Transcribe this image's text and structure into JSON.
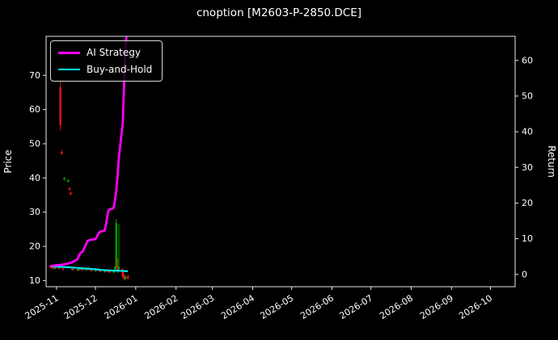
{
  "title": "cnoption [M2603-P-2850.DCE]",
  "colors": {
    "background": "#000000",
    "text": "#ffffff",
    "axis": "#e8e8e8",
    "candle_up": "#00a000",
    "candle_down": "#ee1111",
    "ai_strategy": "#ff00ff",
    "buy_and_hold": "#00e5ee"
  },
  "legend": {
    "items": [
      {
        "label": "AI Strategy",
        "color": "#ff00ff"
      },
      {
        "label": "Buy-and-Hold",
        "color": "#00e5ee"
      }
    ]
  },
  "chart_data": {
    "type": "line",
    "title": "cnoption [M2603-P-2850.DCE]",
    "ylabel_left": "Price",
    "ylabel_right": "Return",
    "grid": false,
    "legend_position": "upper-left",
    "x_range": [
      "2025-10-24",
      "2026-10-20"
    ],
    "x_tick_labels": [
      "2025-11",
      "2025-12",
      "2026-01",
      "2026-02",
      "2026-03",
      "2026-04",
      "2026-05",
      "2026-06",
      "2026-07",
      "2026-08",
      "2026-09",
      "2026-10"
    ],
    "price_ticks": [
      10,
      20,
      30,
      40,
      50,
      60,
      70
    ],
    "return_ticks": [
      0,
      10,
      20,
      30,
      40,
      50,
      60
    ],
    "price_axis": {
      "min": 8.2,
      "max": 81.4
    },
    "return_axis": {
      "min": -3.45,
      "max": 66.74
    },
    "series": [
      {
        "name": "AI Strategy",
        "axis": "left-price",
        "color": "#ff00ff",
        "points": [
          [
            "2025-10-27",
            14.2
          ],
          [
            "2025-10-31",
            14.4
          ],
          [
            "2025-11-05",
            14.6
          ],
          [
            "2025-11-10",
            15.0
          ],
          [
            "2025-11-13",
            15.3
          ],
          [
            "2025-11-17",
            16.2
          ],
          [
            "2025-11-19",
            17.8
          ],
          [
            "2025-11-20",
            18.2
          ],
          [
            "2025-11-21",
            18.4
          ],
          [
            "2025-11-24",
            20.8
          ],
          [
            "2025-11-25",
            21.6
          ],
          [
            "2025-11-27",
            21.9
          ],
          [
            "2025-12-01",
            22.1
          ],
          [
            "2025-12-02",
            22.8
          ],
          [
            "2025-12-03",
            23.6
          ],
          [
            "2025-12-04",
            24.1
          ],
          [
            "2025-12-05",
            24.3
          ],
          [
            "2025-12-08",
            24.6
          ],
          [
            "2025-12-09",
            26.2
          ],
          [
            "2025-12-10",
            28.6
          ],
          [
            "2025-12-11",
            30.4
          ],
          [
            "2025-12-12",
            30.8
          ],
          [
            "2025-12-15",
            31.2
          ],
          [
            "2025-12-16",
            33.5
          ],
          [
            "2025-12-17",
            36.5
          ],
          [
            "2025-12-18",
            40.5
          ],
          [
            "2025-12-19",
            46.0
          ],
          [
            "2025-12-22",
            56.0
          ],
          [
            "2025-12-23",
            67.0
          ],
          [
            "2025-12-24",
            78.0
          ],
          [
            "2025-12-26",
            86.0
          ]
        ]
      },
      {
        "name": "Buy-and-Hold",
        "axis": "left-price",
        "color": "#00e5ee",
        "points": [
          [
            "2025-10-27",
            14.2
          ],
          [
            "2025-11-03",
            14.0
          ],
          [
            "2025-11-10",
            13.9
          ],
          [
            "2025-11-17",
            13.7
          ],
          [
            "2025-11-24",
            13.5
          ],
          [
            "2025-12-01",
            13.3
          ],
          [
            "2025-12-05",
            13.1
          ],
          [
            "2025-12-10",
            13.0
          ],
          [
            "2025-12-15",
            12.9
          ],
          [
            "2025-12-18",
            12.9
          ],
          [
            "2025-12-22",
            12.8
          ],
          [
            "2025-12-26",
            12.7
          ]
        ]
      }
    ],
    "candles": [
      [
        "2025-10-27",
        14.1,
        14.5,
        13.8,
        13.9
      ],
      [
        "2025-10-28",
        13.9,
        14.2,
        13.5,
        13.7
      ],
      [
        "2025-10-29",
        13.7,
        14.0,
        13.4,
        13.9
      ],
      [
        "2025-10-30",
        13.9,
        14.1,
        13.3,
        13.5
      ],
      [
        "2025-10-31",
        13.5,
        13.9,
        13.2,
        13.7
      ],
      [
        "2025-11-03",
        13.7,
        14.0,
        13.3,
        13.4
      ],
      [
        "2025-11-04",
        66.5,
        68.5,
        54.0,
        55.5
      ],
      [
        "2025-11-05",
        47.6,
        48.2,
        46.8,
        47.0
      ],
      [
        "2025-11-06",
        13.4,
        13.7,
        13.0,
        13.2
      ],
      [
        "2025-11-07",
        39.6,
        40.3,
        39.2,
        40.1
      ],
      [
        "2025-11-10",
        38.9,
        39.6,
        38.6,
        39.4
      ],
      [
        "2025-11-11",
        37.0,
        37.3,
        36.3,
        36.5
      ],
      [
        "2025-11-12",
        35.7,
        36.0,
        35.0,
        35.2
      ],
      [
        "2025-11-13",
        13.2,
        13.6,
        12.9,
        13.4
      ],
      [
        "2025-11-14",
        13.4,
        13.7,
        13.0,
        13.1
      ],
      [
        "2025-11-17",
        13.1,
        13.4,
        12.8,
        13.0
      ],
      [
        "2025-11-18",
        13.0,
        13.5,
        12.8,
        13.3
      ],
      [
        "2025-11-19",
        13.3,
        13.8,
        13.1,
        13.6
      ],
      [
        "2025-11-20",
        13.6,
        13.9,
        13.1,
        13.2
      ],
      [
        "2025-11-21",
        13.2,
        13.5,
        12.9,
        13.0
      ],
      [
        "2025-11-24",
        13.0,
        13.5,
        12.8,
        13.4
      ],
      [
        "2025-11-25",
        13.4,
        13.9,
        13.2,
        13.7
      ],
      [
        "2025-11-26",
        13.7,
        14.0,
        13.2,
        13.4
      ],
      [
        "2025-11-27",
        13.4,
        13.6,
        12.9,
        13.1
      ],
      [
        "2025-11-28",
        13.1,
        13.3,
        12.6,
        12.8
      ],
      [
        "2025-12-01",
        12.8,
        13.2,
        12.5,
        13.0
      ],
      [
        "2025-12-02",
        13.0,
        13.5,
        12.8,
        13.3
      ],
      [
        "2025-12-03",
        13.3,
        13.6,
        12.9,
        13.1
      ],
      [
        "2025-12-04",
        13.1,
        13.4,
        12.7,
        12.9
      ],
      [
        "2025-12-05",
        12.9,
        13.1,
        12.4,
        12.6
      ],
      [
        "2025-12-08",
        12.6,
        13.0,
        12.3,
        12.8
      ],
      [
        "2025-12-09",
        12.8,
        13.2,
        12.5,
        13.0
      ],
      [
        "2025-12-10",
        13.0,
        13.3,
        12.6,
        12.8
      ],
      [
        "2025-12-11",
        12.8,
        13.1,
        12.4,
        12.6
      ],
      [
        "2025-12-12",
        12.6,
        12.9,
        12.2,
        12.4
      ],
      [
        "2025-12-15",
        12.4,
        12.8,
        12.1,
        12.6
      ],
      [
        "2025-12-16",
        12.6,
        14.2,
        12.4,
        14.0
      ],
      [
        "2025-12-17",
        14.0,
        28.0,
        13.6,
        26.8
      ],
      [
        "2025-12-18",
        14.2,
        16.5,
        12.2,
        13.2
      ],
      [
        "2025-12-19",
        13.4,
        26.5,
        12.4,
        14.0
      ],
      [
        "2025-12-22",
        13.2,
        13.6,
        10.8,
        11.2
      ],
      [
        "2025-12-23",
        11.2,
        12.0,
        10.2,
        10.5
      ],
      [
        "2025-12-24",
        10.5,
        11.6,
        10.0,
        11.2
      ],
      [
        "2025-12-26",
        11.2,
        11.8,
        10.3,
        10.6
      ]
    ]
  }
}
